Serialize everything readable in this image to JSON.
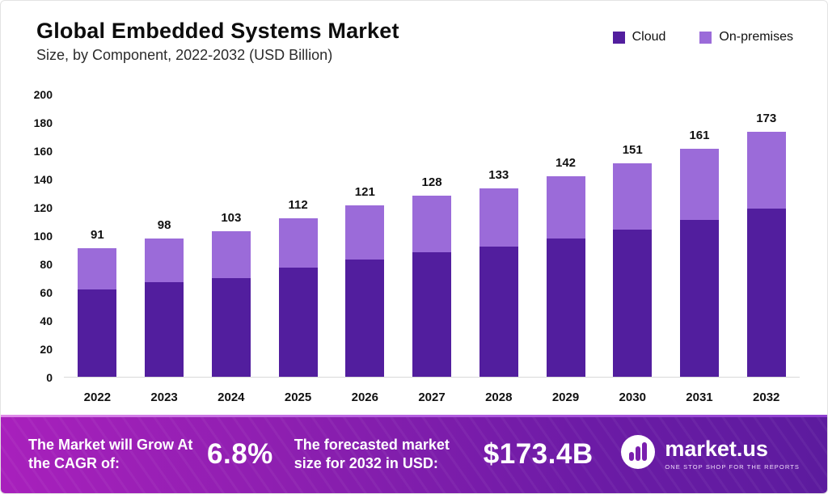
{
  "header": {
    "title": "Global Embedded Systems Market",
    "subtitle": "Size, by Component, 2022-2032 (USD Billion)"
  },
  "legend": [
    {
      "label": "Cloud",
      "color": "#521e9e"
    },
    {
      "label": "On-premises",
      "color": "#9b6bd9"
    }
  ],
  "chart_data": {
    "type": "bar",
    "stacked": true,
    "title": "Global Embedded Systems Market Size, by Component, 2022-2032 (USD Billion)",
    "xlabel": "",
    "ylabel": "USD Billion",
    "categories": [
      "2022",
      "2023",
      "2024",
      "2025",
      "2026",
      "2027",
      "2028",
      "2029",
      "2030",
      "2031",
      "2032"
    ],
    "series": [
      {
        "name": "Cloud",
        "color": "#521e9e",
        "values": [
          62,
          67,
          70,
          77,
          83,
          88,
          92,
          98,
          104,
          111,
          119
        ]
      },
      {
        "name": "On-premises",
        "color": "#9b6bd9",
        "values": [
          29,
          31,
          33,
          35,
          38,
          40,
          41,
          44,
          47,
          50,
          54
        ]
      }
    ],
    "totals": [
      91,
      98,
      103,
      112,
      121,
      128,
      133,
      142,
      151,
      161,
      173
    ],
    "ylim": [
      0,
      200
    ],
    "yticks": [
      0,
      20,
      40,
      60,
      80,
      100,
      120,
      140,
      160,
      180,
      200
    ],
    "grid": false,
    "legend_position": "top-right"
  },
  "footer": {
    "cagr_label": "The Market will Grow At the CAGR of:",
    "cagr_value": "6.8%",
    "forecast_label": "The forecasted market size for 2032 in USD:",
    "forecast_value": "$173.4B",
    "brand": {
      "name": "market.us",
      "tagline": "ONE STOP SHOP FOR THE REPORTS"
    }
  }
}
